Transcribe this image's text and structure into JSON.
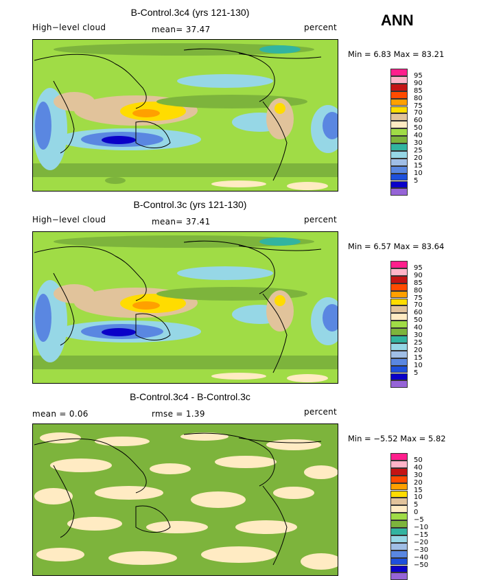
{
  "season": "ANN",
  "palette": [
    "#ff1e8c",
    "#ffb4c8",
    "#c41414",
    "#ff4b00",
    "#ffa000",
    "#ffdc00",
    "#e1c39b",
    "#ffebc3",
    "#a0dc46",
    "#7db43c",
    "#32b4a0",
    "#96d7e6",
    "#a0bee6",
    "#5a87e1",
    "#1e50dc",
    "#0a00c8",
    "#9664d7"
  ],
  "panels": [
    {
      "title": "B-Control.3c4 (yrs 121-130)",
      "left_label": "High−level cloud",
      "mid_label": "mean=   37.47",
      "right_label": "percent",
      "stats": "Min =    6.83  Max =   83.21",
      "levels": [
        "95",
        "90",
        "85",
        "80",
        "75",
        "70",
        "60",
        "50",
        "40",
        "30",
        "25",
        "20",
        "15",
        "10",
        "5"
      ]
    },
    {
      "title": "B-Control.3c (yrs 121-130)",
      "left_label": "High−level cloud",
      "mid_label": "mean=   37.41",
      "right_label": "percent",
      "stats": "Min =    6.57  Max =   83.64",
      "levels": [
        "95",
        "90",
        "85",
        "80",
        "75",
        "70",
        "60",
        "50",
        "40",
        "30",
        "25",
        "20",
        "15",
        "10",
        "5"
      ]
    },
    {
      "title": "B-Control.3c4 - B-Control.3c",
      "left_label": "mean =    0.06",
      "mid_label": "rmse =    1.39",
      "right_label": "percent",
      "stats": "Min =   −5.52  Max =    5.82",
      "levels": [
        "50",
        "40",
        "30",
        "20",
        "15",
        "10",
        "5",
        "0",
        "−5",
        "−10",
        "−15",
        "−20",
        "−30",
        "−40",
        "−50"
      ]
    }
  ]
}
